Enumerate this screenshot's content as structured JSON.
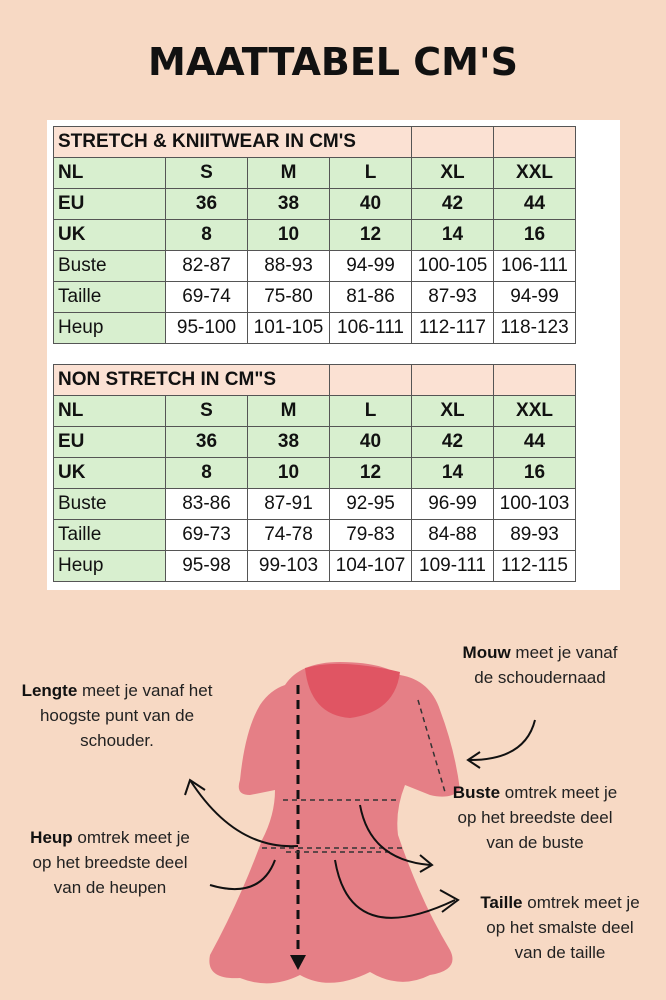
{
  "title": "MAATTABEL CM'S",
  "tables": [
    {
      "title": "STRETCH & KNIITWEAR IN CM'S",
      "header": [
        "NL",
        "S",
        "M",
        "L",
        "XL",
        "XXL"
      ],
      "rows": [
        [
          "EU",
          "36",
          "38",
          "40",
          "42",
          "44"
        ],
        [
          "UK",
          "8",
          "10",
          "12",
          "14",
          "16"
        ],
        [
          "Buste",
          "82-87",
          "88-93",
          "94-99",
          "100-105",
          "106-111"
        ],
        [
          "Taille",
          "69-74",
          "75-80",
          "81-86",
          "87-93",
          "94-99"
        ],
        [
          "Heup",
          "95-100",
          "101-105",
          "106-111",
          "112-117",
          "118-123"
        ]
      ]
    },
    {
      "title": "NON STRETCH IN CM\"S",
      "header": [
        "NL",
        "S",
        "M",
        "L",
        "XL",
        "XXL"
      ],
      "rows": [
        [
          "EU",
          "36",
          "38",
          "40",
          "42",
          "44"
        ],
        [
          "UK",
          "8",
          "10",
          "12",
          "14",
          "16"
        ],
        [
          "Buste",
          "83-86",
          "87-91",
          "92-95",
          "96-99",
          "100-103"
        ],
        [
          "Taille",
          "69-73",
          "74-78",
          "79-83",
          "84-88",
          "89-93"
        ],
        [
          "Heup",
          "95-98",
          "99-103",
          "104-107",
          "109-111",
          "112-115"
        ]
      ]
    }
  ],
  "notes": {
    "lengte": {
      "bold": "Lengte",
      "l1": " meet je vanaf het",
      "l2": "hoogste punt van de",
      "l3": "schouder."
    },
    "mouw": {
      "bold": "Mouw",
      "l1": " meet je vanaf",
      "l2": "de schoudernaad"
    },
    "buste": {
      "bold": "Buste",
      "l1": " omtrek meet je",
      "l2": "op het breedste deel",
      "l3": "van de buste"
    },
    "heup": {
      "bold": "Heup",
      "l1": " omtrek meet je",
      "l2": "op het breedste deel",
      "l3": "van de heupen"
    },
    "taille": {
      "bold": "Taille",
      "l1": " omtrek meet je",
      "l2": "op het smalste deel",
      "l3": "van de taille"
    }
  },
  "colors": {
    "background": "#f7d9c4",
    "title_row": "#fbe1d3",
    "green": "#d8efcf",
    "dress": "#e57f86",
    "neckline": "#e05563"
  }
}
